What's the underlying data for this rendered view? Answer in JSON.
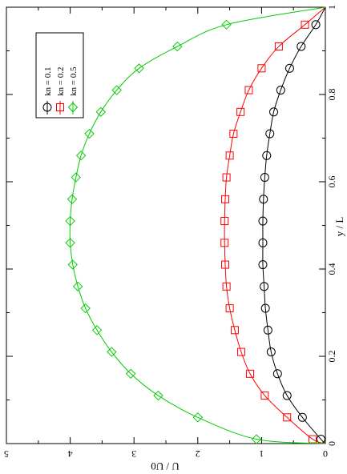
{
  "chart_data": {
    "type": "line",
    "orientation": "rotated-90",
    "xlabel": "y / L",
    "ylabel": "U / U0",
    "xlim": [
      0,
      1
    ],
    "ylim": [
      0,
      5
    ],
    "x_ticks": [
      "0",
      "0.2",
      "0.4",
      "0.6",
      "0.8",
      "1"
    ],
    "y_ticks": [
      "0",
      "1",
      "2",
      "3",
      "4",
      "5"
    ],
    "grid": false,
    "legend_position": "top-left",
    "series": [
      {
        "name": "kn = 0.1",
        "color": "#000000",
        "marker": "circle",
        "x": [
          0.01,
          0.06,
          0.11,
          0.16,
          0.21,
          0.26,
          0.31,
          0.36,
          0.41,
          0.46,
          0.51,
          0.56,
          0.61,
          0.66,
          0.71,
          0.76,
          0.81,
          0.86,
          0.91,
          0.96
        ],
        "y": [
          0.07,
          0.36,
          0.6,
          0.75,
          0.85,
          0.9,
          0.94,
          0.96,
          0.98,
          0.98,
          0.98,
          0.97,
          0.95,
          0.92,
          0.87,
          0.81,
          0.7,
          0.56,
          0.38,
          0.15
        ]
      },
      {
        "name": "kn = 0.2",
        "color": "#ff0000",
        "marker": "square",
        "x": [
          0.01,
          0.06,
          0.11,
          0.16,
          0.21,
          0.26,
          0.31,
          0.36,
          0.41,
          0.46,
          0.51,
          0.56,
          0.61,
          0.66,
          0.71,
          0.76,
          0.81,
          0.86,
          0.91,
          0.96
        ],
        "y": [
          0.2,
          0.6,
          0.95,
          1.18,
          1.32,
          1.42,
          1.5,
          1.55,
          1.57,
          1.58,
          1.58,
          1.57,
          1.55,
          1.5,
          1.44,
          1.33,
          1.2,
          1.0,
          0.73,
          0.32
        ]
      },
      {
        "name": "kn = 0.5",
        "color": "#00cc00",
        "marker": "diamond",
        "x": [
          0.01,
          0.06,
          0.11,
          0.16,
          0.21,
          0.26,
          0.31,
          0.36,
          0.41,
          0.46,
          0.51,
          0.56,
          0.61,
          0.66,
          0.71,
          0.76,
          0.81,
          0.86,
          0.91,
          0.96
        ],
        "y": [
          1.08,
          2.0,
          2.62,
          3.05,
          3.35,
          3.58,
          3.76,
          3.88,
          3.96,
          4.0,
          4.0,
          3.97,
          3.91,
          3.83,
          3.7,
          3.52,
          3.27,
          2.92,
          2.32,
          1.55
        ]
      }
    ]
  }
}
